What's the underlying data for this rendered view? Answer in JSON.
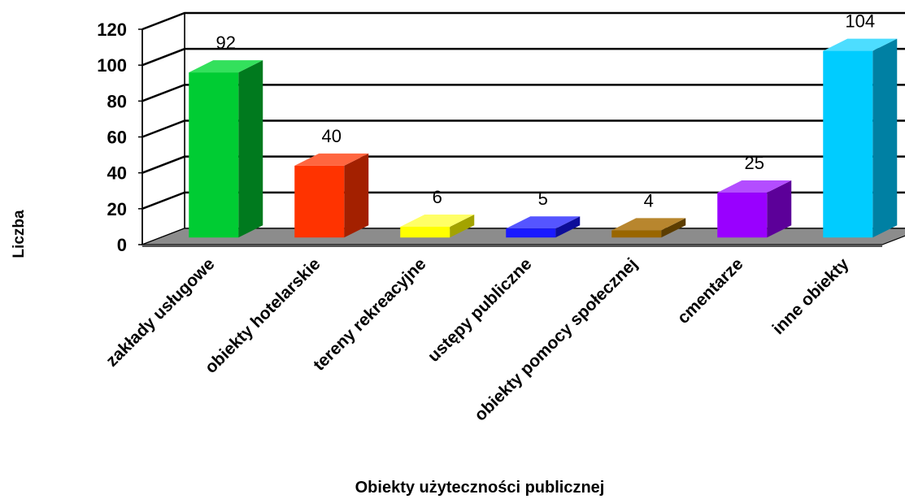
{
  "chart_data": {
    "type": "bar",
    "categories": [
      "zakłady usługowe",
      "obiekty hotelarskie",
      "tereny rekreacyjne",
      "ustępy publiczne",
      "obiekty pomocy społecznej",
      "cmentarze",
      "inne obiekty"
    ],
    "values": [
      92,
      40,
      6,
      5,
      4,
      25,
      104
    ],
    "colors": [
      "#00cc33",
      "#ff3300",
      "#ffff00",
      "#1a1aff",
      "#996600",
      "#9900ff",
      "#00ccff"
    ],
    "side_colors": [
      "#007a1e",
      "#a32000",
      "#a3a300",
      "#0d0d99",
      "#5c3d00",
      "#5c0099",
      "#0080a3"
    ],
    "top_colors": [
      "#33e05c",
      "#ff6640",
      "#ffff66",
      "#5555ff",
      "#b8862e",
      "#b34dff",
      "#4dddff"
    ],
    "title": "",
    "xlabel": "Obiekty użyteczności publicznej",
    "ylabel": "Liczba",
    "ylim": [
      0,
      120
    ],
    "yticks": [
      0,
      20,
      40,
      60,
      80,
      100,
      120
    ],
    "data_labels": true,
    "grid": true,
    "style": "3d-column"
  }
}
